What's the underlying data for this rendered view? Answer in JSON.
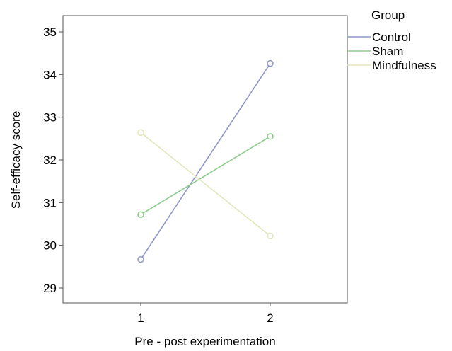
{
  "chart_data": {
    "type": "line",
    "title": "",
    "xlabel": "Pre - post experimentation",
    "ylabel": "Self-efficacy score",
    "categories": [
      "1",
      "2"
    ],
    "ylim": [
      28.7,
      35.3
    ],
    "yticks": [
      29,
      30,
      31,
      32,
      33,
      34,
      35
    ],
    "grid": false,
    "legend": {
      "title": "Group",
      "position": "top-right"
    },
    "series": [
      {
        "name": "Control",
        "values": [
          29.67,
          34.26
        ],
        "color": "#8c96c8"
      },
      {
        "name": "Sham",
        "values": [
          30.72,
          32.55
        ],
        "color": "#8ccc8c"
      },
      {
        "name": "Mindfulness",
        "values": [
          32.64,
          30.22
        ],
        "color": "#e3e6bc"
      }
    ]
  }
}
